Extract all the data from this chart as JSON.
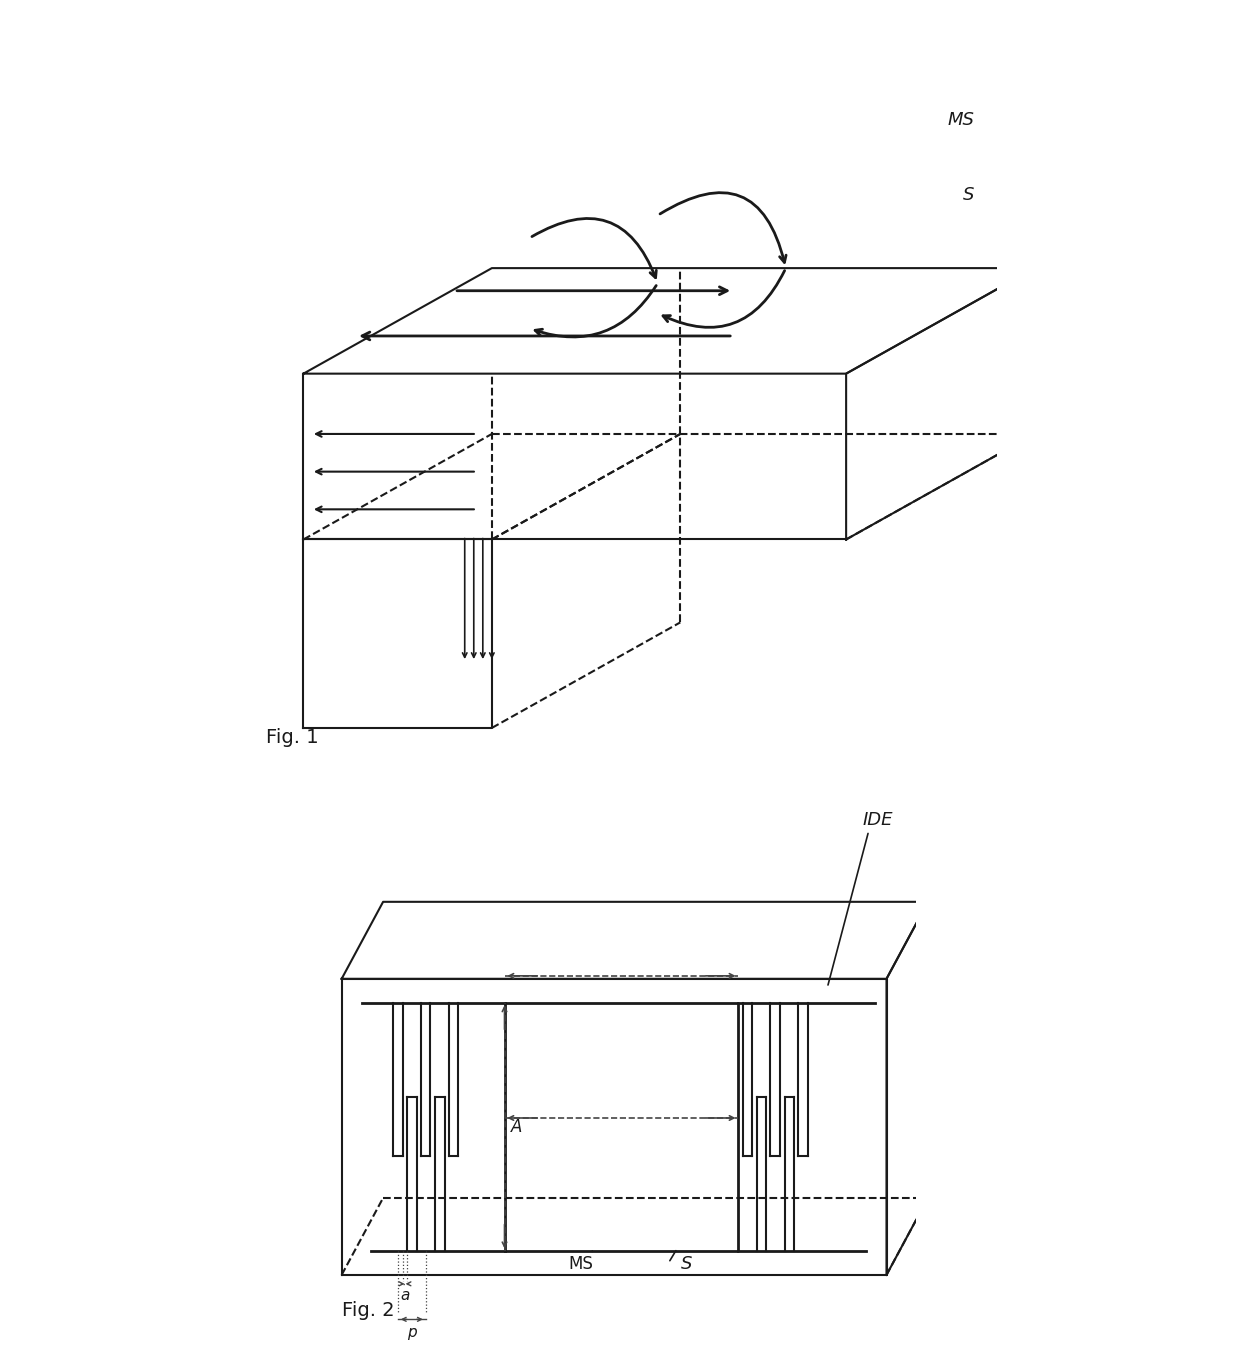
{
  "bg_color": "#ffffff",
  "line_color": "#1a1a1a",
  "fig1_label": "Fig. 1",
  "fig2_label": "Fig. 2",
  "label_MS1": "MS",
  "label_S1": "S",
  "label_MS2": "MS",
  "label_S2": "S",
  "label_IDE": "IDE",
  "label_A": "A",
  "label_a": "a",
  "label_p": "p"
}
